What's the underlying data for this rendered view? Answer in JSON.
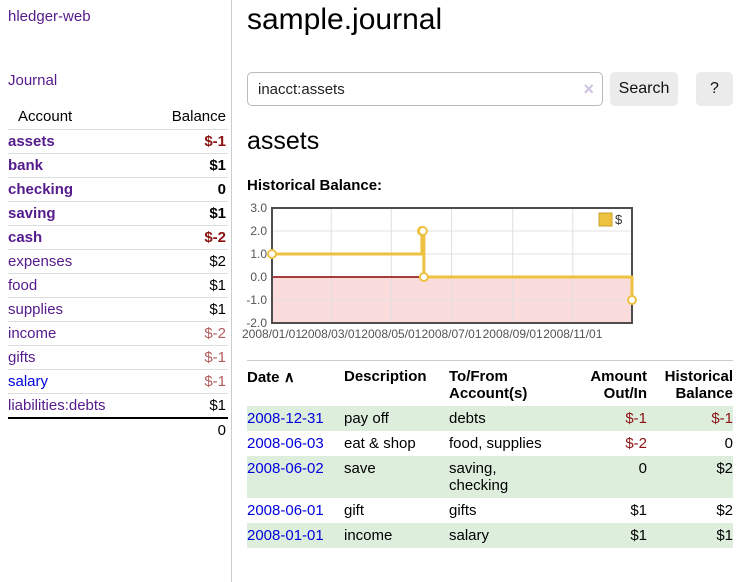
{
  "app": {
    "title": "hledger-web"
  },
  "sidebar": {
    "journal_link": "Journal",
    "table": {
      "account_header": "Account",
      "balance_header": "Balance",
      "rows": [
        {
          "name": "assets",
          "balance": "$-1",
          "indent": 1,
          "bold": true,
          "link_color": "purple",
          "balance_color": "neg-strong"
        },
        {
          "name": "bank",
          "balance": "$1",
          "indent": 2,
          "bold": true,
          "link_color": "purple",
          "balance_color": "pos"
        },
        {
          "name": "checking",
          "balance": "0",
          "indent": 3,
          "bold": true,
          "link_color": "purple",
          "balance_color": "pos"
        },
        {
          "name": "saving",
          "balance": "$1",
          "indent": 3,
          "bold": true,
          "link_color": "purple",
          "balance_color": "pos"
        },
        {
          "name": "cash",
          "balance": "$-2",
          "indent": 2,
          "bold": true,
          "link_color": "purple",
          "balance_color": "neg-strong"
        },
        {
          "name": "expenses",
          "balance": "$2",
          "indent": 1,
          "bold": false,
          "link_color": "purple",
          "balance_color": "pos"
        },
        {
          "name": "food",
          "balance": "$1",
          "indent": 2,
          "bold": false,
          "link_color": "purple",
          "balance_color": "pos"
        },
        {
          "name": "supplies",
          "balance": "$1",
          "indent": 2,
          "bold": false,
          "link_color": "purple",
          "balance_color": "pos"
        },
        {
          "name": "income",
          "balance": "$-2",
          "indent": 1,
          "bold": false,
          "link_color": "purple",
          "balance_color": "neg-muted"
        },
        {
          "name": "gifts",
          "balance": "$-1",
          "indent": 2,
          "bold": false,
          "link_color": "purple",
          "balance_color": "neg-muted"
        },
        {
          "name": "salary",
          "balance": "$-1",
          "indent": 2,
          "bold": false,
          "link_color": "blue",
          "balance_color": "neg-muted"
        },
        {
          "name": "liabilities:debts",
          "balance": "$1",
          "indent": 1,
          "bold": false,
          "link_color": "purple",
          "balance_color": "pos"
        }
      ],
      "total": "0"
    }
  },
  "header": {
    "title": "sample.journal"
  },
  "search": {
    "value": "inacct:assets",
    "clear_icon": "×",
    "button": "Search",
    "help_button": "?"
  },
  "account_page": {
    "title": "assets",
    "chart_label": "Historical Balance:"
  },
  "chart_data": {
    "type": "line",
    "step": true,
    "title": "Historical Balance:",
    "series": [
      {
        "name": "$",
        "color": "#edc240",
        "points": [
          [
            "2008-01-01",
            1
          ],
          [
            "2008-06-01",
            2
          ],
          [
            "2008-06-02",
            2
          ],
          [
            "2008-06-03",
            0
          ],
          [
            "2008-12-31",
            -1
          ]
        ]
      }
    ],
    "x_ticks": [
      "2008/01/01",
      "2008/03/01",
      "2008/05/01",
      "2008/07/01",
      "2008/09/01",
      "2008/11/01"
    ],
    "x_range": [
      "2008-01-01",
      "2008-12-31"
    ],
    "y_ticks": [
      "3.0",
      "2.0",
      "1.0",
      "0.0",
      "-1.0",
      "-2.0"
    ],
    "y_range": [
      -2,
      3
    ],
    "grid": true,
    "legend_position": "top-right",
    "negative_fill": "#fbdcdc",
    "zero_line_color": "#8b0000",
    "grid_color": "#e0e0e0",
    "border_color": "#4d4d4d",
    "tick_label_color": "#545454"
  },
  "register": {
    "headers": {
      "date": "Date",
      "sort_icon": "∧",
      "description": "Description",
      "tofrom": "To/From Account(s)",
      "amount": "Amount Out/In",
      "balance": "Historical Balance"
    },
    "rows": [
      {
        "date": "2008-12-31",
        "description": "pay off",
        "accounts": "debts",
        "amount": "$-1",
        "balance": "$-1"
      },
      {
        "date": "2008-06-03",
        "description": "eat & shop",
        "accounts": "food, supplies",
        "amount": "$-2",
        "balance": "0"
      },
      {
        "date": "2008-06-02",
        "description": "save",
        "accounts": "saving,\nchecking",
        "amount": "0",
        "balance": "$2"
      },
      {
        "date": "2008-06-01",
        "description": "gift",
        "accounts": "gifts",
        "amount": "$1",
        "balance": "$2"
      },
      {
        "date": "2008-01-01",
        "description": "income",
        "accounts": "salary",
        "amount": "$1",
        "balance": "$1"
      }
    ]
  }
}
